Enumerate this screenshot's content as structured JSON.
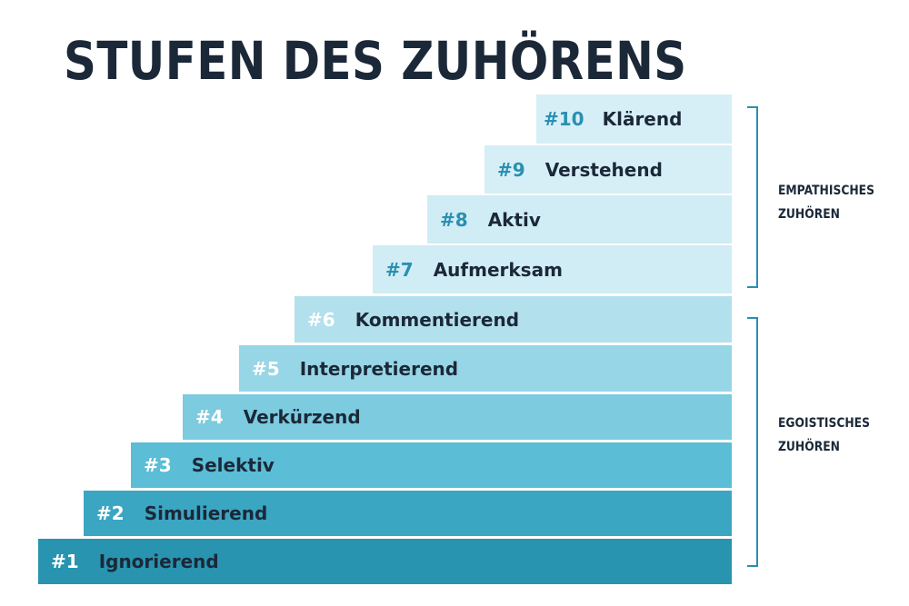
{
  "title": "STUFEN DES ZUHÖRENS",
  "steps": [
    {
      "num": "#1",
      "label": "Ignorierend"
    },
    {
      "num": "#2",
      "label": "Simulierend"
    },
    {
      "num": "#3",
      "label": "Selektiv"
    },
    {
      "num": "#4",
      "label": "Verkürzend"
    },
    {
      "num": "#5",
      "label": "Interpretierend"
    },
    {
      "num": "#6",
      "label": "Kommentierend"
    },
    {
      "num": "#7",
      "label": "Aufmerksam"
    },
    {
      "num": "#8",
      "label": "Aktiv"
    },
    {
      "num": "#9",
      "label": "Verstehend"
    },
    {
      "num": "#10",
      "label": "Klärend"
    }
  ],
  "groups": {
    "empathic": {
      "line1": "EMPATHISCHES",
      "line2": "ZUHÖREN"
    },
    "egoistic": {
      "line1": "EGOISTISCHES",
      "line2": "ZUHÖREN"
    }
  },
  "colors": {
    "title": "#1b2838",
    "bracket": "#2a8fb2",
    "step_fills": [
      "#2894b0",
      "#3ba6c2",
      "#5bbdd6",
      "#7ccbdf",
      "#97d6e6",
      "#b2e0ec",
      "#d0ecf4",
      "#d0ecf4",
      "#d6eff6",
      "#d6eff6"
    ],
    "number_colors": [
      "#ffffff",
      "#ffffff",
      "#ffffff",
      "#ffffff",
      "#ffffff",
      "#ffffff",
      "#2a8fb2",
      "#2a8fb2",
      "#2a8fb2",
      "#2a8fb2"
    ]
  }
}
